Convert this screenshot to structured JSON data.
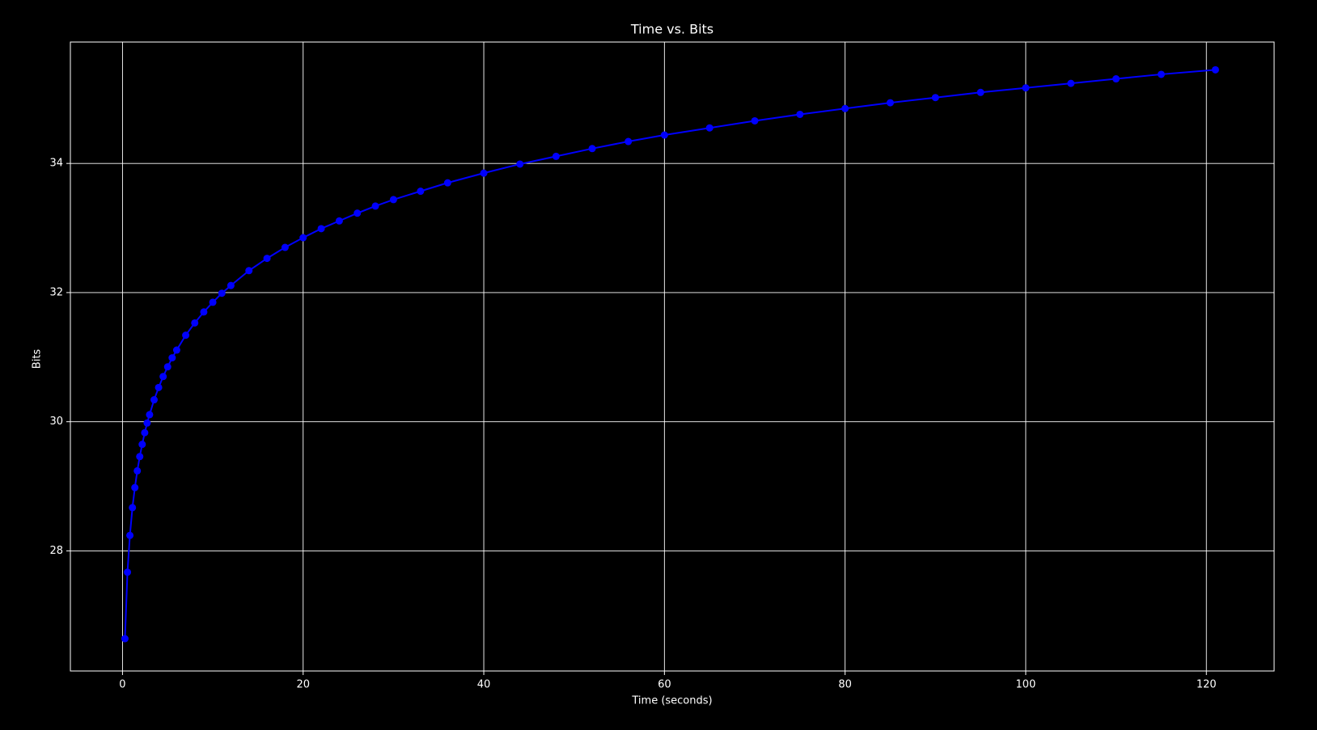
{
  "chart_data": {
    "type": "line",
    "title": "Time vs. Bits",
    "x_label": "Time (seconds)",
    "y_label": "Bits",
    "x": [
      0.27,
      0.55,
      0.82,
      1.1,
      1.37,
      1.64,
      1.91,
      2.18,
      2.46,
      2.73,
      3,
      3.5,
      4,
      4.5,
      5,
      5.5,
      6,
      7,
      8,
      9,
      10,
      11,
      12,
      14,
      16,
      18,
      20,
      22,
      24,
      26,
      28,
      30,
      33,
      36,
      40,
      44,
      48,
      52,
      56,
      60,
      65,
      70,
      75,
      80,
      85,
      90,
      95,
      100,
      105,
      110,
      115,
      121
    ],
    "series": [
      {
        "color": "#0000ff",
        "values": [
          26.64,
          27.67,
          28.24,
          28.67,
          28.98,
          29.24,
          29.46,
          29.65,
          29.83,
          29.98,
          30.11,
          30.34,
          30.53,
          30.7,
          30.85,
          30.99,
          31.11,
          31.34,
          31.53,
          31.7,
          31.85,
          31.99,
          32.11,
          32.34,
          32.53,
          32.7,
          32.85,
          32.99,
          33.11,
          33.23,
          33.34,
          33.44,
          33.57,
          33.7,
          33.85,
          33.99,
          34.11,
          34.23,
          34.34,
          34.44,
          34.55,
          34.66,
          34.76,
          34.85,
          34.94,
          35.02,
          35.1,
          35.17,
          35.24,
          35.31,
          35.38,
          35.45
        ]
      }
    ],
    "xlim": [
      -5.77,
      127.5
    ],
    "xticks": [
      0,
      20,
      40,
      60,
      80,
      100,
      120
    ],
    "ylim": [
      26.14,
      35.88
    ],
    "yticks": [
      28,
      30,
      32,
      34
    ],
    "grid": true
  }
}
